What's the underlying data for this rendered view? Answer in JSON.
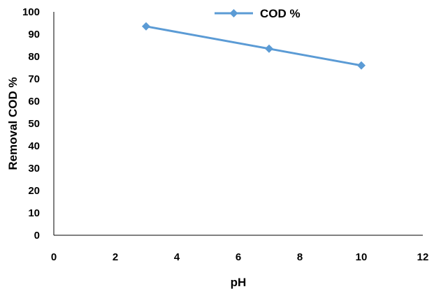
{
  "chart_data": {
    "type": "scatter",
    "title": "",
    "xlabel": "pH",
    "ylabel": "Removal COD %",
    "xlim": [
      0,
      12
    ],
    "ylim": [
      0,
      100
    ],
    "xticks": [
      "0",
      "2",
      "4",
      "6",
      "8",
      "10",
      "12"
    ],
    "yticks": [
      "0",
      "10",
      "20",
      "30",
      "40",
      "50",
      "60",
      "70",
      "80",
      "90",
      "100"
    ],
    "grid": false,
    "legend_position": "top",
    "series": [
      {
        "name": "COD %",
        "color": "#5b9bd5",
        "marker": "diamond",
        "points": [
          {
            "x": 3,
            "y": 93.5
          },
          {
            "x": 7,
            "y": 83.5
          },
          {
            "x": 10,
            "y": 76
          }
        ]
      }
    ]
  }
}
